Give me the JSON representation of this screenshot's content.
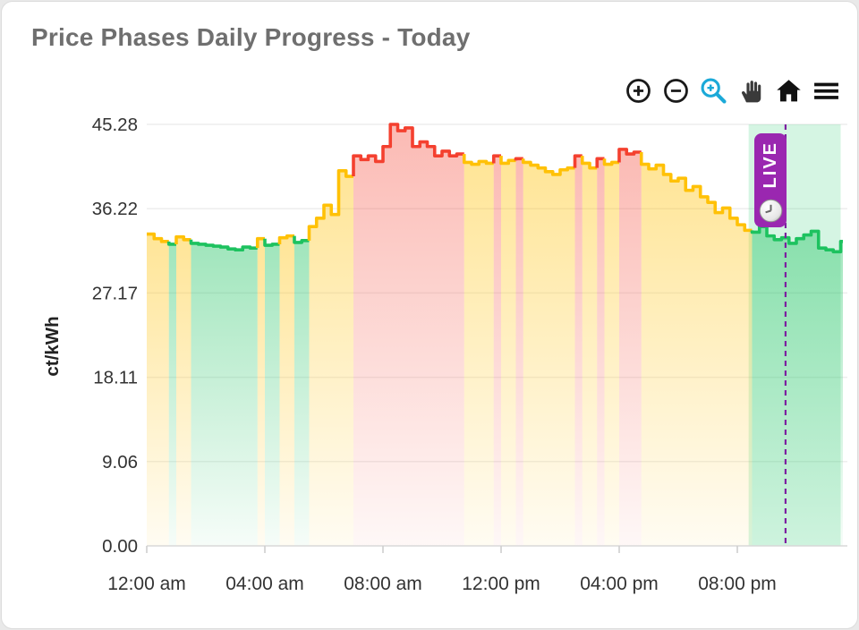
{
  "card": {
    "title": "Price Phases Daily Progress - Today"
  },
  "toolbar": {
    "icons": [
      "zoom-in",
      "zoom-out",
      "box-zoom",
      "pan",
      "home",
      "menu"
    ],
    "active_tool": "box-zoom",
    "active_color": "#1ba9d8",
    "icon_color": "#1a1a1a"
  },
  "live_badge": {
    "label": "LIVE",
    "color": "#9a27b0"
  },
  "chart_data": {
    "type": "area",
    "subtype": "step-line-with-phase-coloring",
    "title": "Price Phases Daily Progress - Today",
    "xlabel": "",
    "ylabel": "ct/kWh",
    "ylim": [
      0,
      45.28
    ],
    "grid": true,
    "legend": "none",
    "yticks": [
      {
        "value": 0,
        "label": "0.00"
      },
      {
        "value": 9.06,
        "label": "9.06"
      },
      {
        "value": 18.11,
        "label": "18.11"
      },
      {
        "value": 27.17,
        "label": "27.17"
      },
      {
        "value": 36.22,
        "label": "36.22"
      },
      {
        "value": 45.28,
        "label": "45.28"
      }
    ],
    "xticks": [
      {
        "minute": 0,
        "label": "12:00 am"
      },
      {
        "minute": 240,
        "label": "04:00 am"
      },
      {
        "minute": 480,
        "label": "08:00 am"
      },
      {
        "minute": 720,
        "label": "12:00 pm"
      },
      {
        "minute": 960,
        "label": "04:00 pm"
      },
      {
        "minute": 1200,
        "label": "08:00 pm"
      }
    ],
    "minutes_per_point": 15,
    "values": [
      33.5,
      33.0,
      32.7,
      32.4,
      33.2,
      32.9,
      32.5,
      32.4,
      32.3,
      32.2,
      32.1,
      31.9,
      31.8,
      32.1,
      32.0,
      33.0,
      32.3,
      32.4,
      33.1,
      33.3,
      32.6,
      32.8,
      34.3,
      35.2,
      36.6,
      35.6,
      40.3,
      39.7,
      41.9,
      41.5,
      41.9,
      41.3,
      42.9,
      45.28,
      44.6,
      44.9,
      42.9,
      43.4,
      42.9,
      41.9,
      42.4,
      41.9,
      42.1,
      41.2,
      41.0,
      41.3,
      41.1,
      41.9,
      41.1,
      41.4,
      41.6,
      41.2,
      40.9,
      40.6,
      40.2,
      39.9,
      40.4,
      40.6,
      41.9,
      41.1,
      40.6,
      41.6,
      41.0,
      41.2,
      42.6,
      42.1,
      42.3,
      41.0,
      40.5,
      40.9,
      39.9,
      39.2,
      39.5,
      38.2,
      38.6,
      37.5,
      36.9,
      35.8,
      36.3,
      35.2,
      34.5,
      33.9,
      33.7,
      34.3,
      33.3,
      32.9,
      33.1,
      32.5,
      33.0,
      33.4,
      33.8,
      32.0,
      31.8,
      31.6,
      32.7,
      32.7
    ],
    "phases_by_hour": [
      "yyyg",
      "yygg",
      "gggg",
      "gggy",
      "ggyy",
      "ggyy",
      "yyyy",
      "rrrr",
      "rrrr",
      "rrrr",
      "rrry",
      "yyyr",
      "yyry",
      "yyyy",
      "yyry",
      "yryy",
      "rrry",
      "yyyy",
      "yyyy",
      "yyyy",
      "yygg",
      "gggg",
      "gggg",
      "gggg"
    ],
    "phase_colors": {
      "g": {
        "name": "green-cheap",
        "line": "#1dc25f",
        "fill_rgb": "29,194,95",
        "fill_alpha_top": 0.42,
        "fill_alpha_bottom": 0.04
      },
      "y": {
        "name": "yellow-normal",
        "line": "#ffc107",
        "fill_rgb": "255,193,7",
        "fill_alpha_top": 0.42,
        "fill_alpha_bottom": 0.05
      },
      "r": {
        "name": "red-expensive",
        "line": "#f4402f",
        "fill_rgb": "244,64,47",
        "fill_alpha_top": 0.36,
        "fill_alpha_bottom": 0.04
      }
    },
    "live_window": {
      "start_min": 1223,
      "end_min": 1410,
      "color": "rgba(46,204,113,0.2)"
    },
    "now_line_min": 1298,
    "now_line_color": "#7d1fa0",
    "axis_text_color": "#333333",
    "grid_color": "#eeeeee",
    "axis_line_color": "#d8d8d8"
  }
}
